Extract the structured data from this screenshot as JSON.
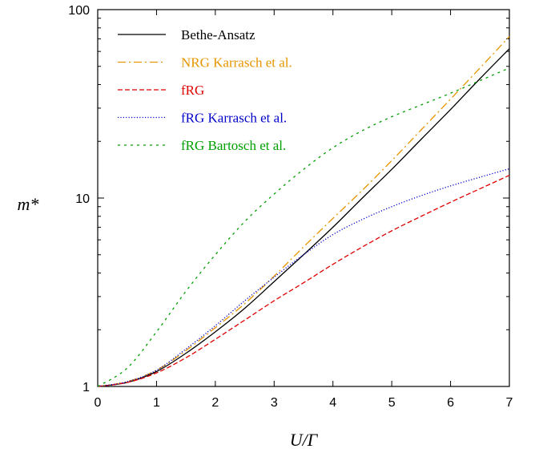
{
  "chart_data": {
    "type": "line",
    "title": "",
    "xlabel": "U/Γ",
    "ylabel": "m*",
    "xlim": [
      0,
      7
    ],
    "ylim": [
      1,
      100
    ],
    "yscale": "log",
    "grid": false,
    "legend_position": "top-left",
    "x_ticks": [
      0,
      1,
      2,
      3,
      4,
      5,
      6,
      7
    ],
    "y_ticks": [
      1,
      10,
      100
    ],
    "series": [
      {
        "name": "Bethe-Ansatz",
        "color": "#000000",
        "style": "solid",
        "x": [
          0,
          0.5,
          1,
          1.5,
          2,
          2.5,
          3,
          3.5,
          4,
          4.5,
          5,
          5.5,
          6,
          6.5,
          7
        ],
        "y": [
          1.0,
          1.05,
          1.2,
          1.5,
          1.95,
          2.6,
          3.6,
          5.0,
          7.0,
          10.0,
          14.2,
          20.5,
          29.5,
          43.0,
          62.0
        ]
      },
      {
        "name": "NRG Karrasch et al.",
        "color": "#e69500",
        "style": "dashdot",
        "x": [
          0,
          0.5,
          1,
          1.5,
          2,
          2.5,
          3,
          3.5,
          4,
          4.5,
          5,
          5.5,
          6,
          6.5,
          7
        ],
        "y": [
          1.0,
          1.06,
          1.22,
          1.55,
          2.05,
          2.75,
          3.85,
          5.5,
          7.8,
          11.0,
          15.8,
          23.0,
          33.5,
          49.0,
          72.0
        ]
      },
      {
        "name": "fRG",
        "color": "#e00000",
        "style": "dashed",
        "x": [
          0,
          0.5,
          1,
          1.5,
          2,
          2.5,
          3,
          3.5,
          4,
          4.5,
          5,
          5.5,
          6,
          6.5,
          7
        ],
        "y": [
          1.0,
          1.05,
          1.18,
          1.42,
          1.78,
          2.25,
          2.85,
          3.55,
          4.45,
          5.5,
          6.7,
          8.0,
          9.5,
          11.2,
          13.2
        ]
      },
      {
        "name": "fRG Karrasch et al.",
        "color": "#0000cc",
        "style": "dotted",
        "x": [
          0,
          0.5,
          1,
          1.5,
          2,
          2.5,
          3,
          3.5,
          4,
          4.5,
          5,
          5.5,
          6,
          6.5,
          7
        ],
        "y": [
          1.0,
          1.06,
          1.22,
          1.58,
          2.1,
          2.85,
          3.8,
          5.0,
          6.4,
          7.7,
          9.0,
          10.3,
          11.6,
          12.9,
          14.3
        ]
      },
      {
        "name": "fRG Bartosch et al.",
        "color": "#00a000",
        "style": "shortdash",
        "x": [
          0,
          0.5,
          1,
          1.5,
          2,
          2.5,
          3,
          3.5,
          4,
          4.5,
          5,
          5.5,
          6,
          6.5,
          7
        ],
        "y": [
          1.0,
          1.25,
          1.95,
          3.2,
          5.0,
          7.5,
          10.5,
          14.2,
          18.5,
          22.8,
          27.0,
          31.2,
          36.0,
          42.0,
          49.0
        ]
      }
    ]
  }
}
